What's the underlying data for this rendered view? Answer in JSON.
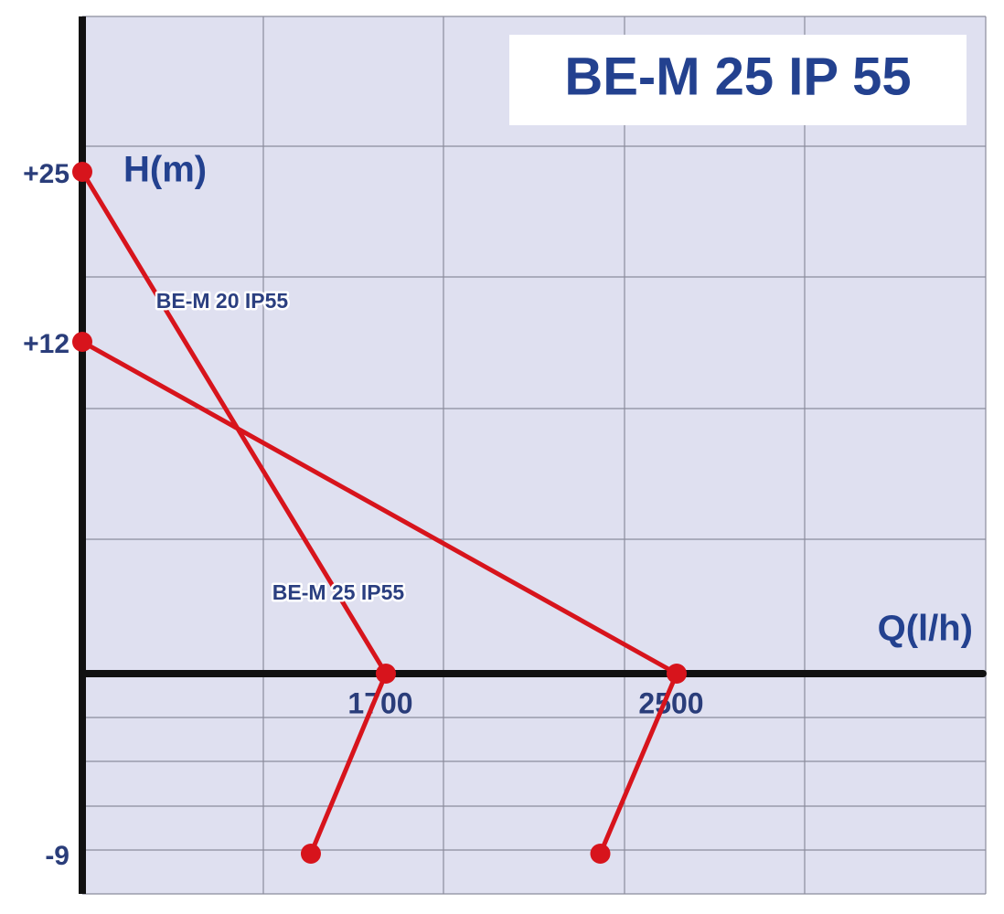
{
  "chart_data": {
    "type": "line",
    "title": "BE-M 25 IP 55",
    "ylabel": "H(m)",
    "xlabel": "Q(l/h)",
    "xlim": [
      0,
      3340
    ],
    "ylim": [
      -11,
      37
    ],
    "xticks": [
      1700,
      2500
    ],
    "yticks": [
      {
        "value": 25,
        "label": "+25"
      },
      {
        "value": 12,
        "label": "+12"
      },
      -9
    ],
    "grid": true,
    "series": [
      {
        "color": "#d7141c",
        "x": [
          0,
          1700,
          1280
        ],
        "values": [
          25,
          0,
          -9
        ]
      },
      {
        "color": "#d7141c",
        "x": [
          0,
          2500,
          2290
        ],
        "values": [
          12,
          0,
          -9
        ]
      }
    ],
    "annotations": [
      {
        "text": "BE-M 20 IP55"
      },
      {
        "text": "BE-M 25 IP55"
      }
    ]
  }
}
